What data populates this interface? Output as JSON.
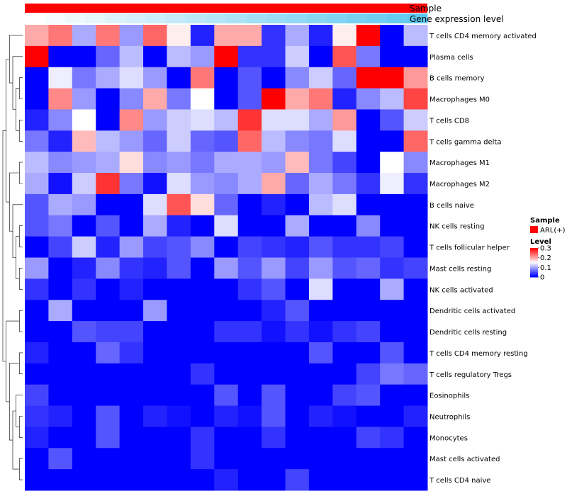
{
  "chart_data": {
    "type": "heatmap",
    "title": "",
    "annotations": [
      {
        "name": "Sample",
        "kind": "categorical",
        "color": "#ff0000"
      },
      {
        "name": "Gene expression level",
        "kind": "continuous",
        "values": [
          0,
          0.05,
          0.1,
          0.15,
          0.2,
          0.25,
          0.3,
          0.35,
          0.4,
          0.45,
          0.5,
          0.55,
          0.6,
          0.65,
          0.7,
          0.75,
          0.8,
          0.85,
          0.9,
          0.95
        ]
      }
    ],
    "rows": [
      "T cells CD4 memory activated",
      "Plasma cells",
      "B cells memory",
      "Macrophages M0",
      "T cells CD8",
      "T cells gamma delta",
      "Macrophages M1",
      "Macrophages M2",
      "B cells naive",
      "NK cells resting",
      "T cells follicular helper",
      "Mast cells resting",
      "NK cells activated",
      "Dendritic cells activated",
      "Dendritic cells resting",
      "T cells CD4 memory resting",
      "T cells regulatory  Tregs",
      "Eosinophils",
      "Neutrophils",
      "Monocytes",
      "Mast cells activated",
      "T cells CD4 naive"
    ],
    "matrix": [
      [
        0.2,
        0.23,
        0.1,
        0.23,
        0.09,
        0.24,
        0.16,
        0.02,
        0.2,
        0.2,
        0.03,
        0.1,
        0.02,
        0.16,
        0.3,
        0.0,
        0.11
      ],
      [
        0.3,
        0.0,
        0.0,
        0.06,
        0.11,
        0.0,
        0.11,
        0.09,
        0.3,
        0.03,
        0.03,
        0.12,
        0.0,
        0.25,
        0.07,
        0.0,
        0.0
      ],
      [
        0.0,
        0.14,
        0.07,
        0.1,
        0.13,
        0.09,
        0.0,
        0.23,
        0.0,
        0.05,
        0.0,
        0.08,
        0.12,
        0.06,
        0.3,
        0.3,
        0.21
      ],
      [
        0.0,
        0.22,
        0.09,
        0.0,
        0.08,
        0.2,
        0.07,
        0.15,
        0.0,
        0.05,
        0.3,
        0.2,
        0.23,
        0.02,
        0.08,
        0.11,
        0.26
      ],
      [
        0.02,
        0.08,
        0.15,
        0.0,
        0.22,
        0.09,
        0.12,
        0.13,
        0.11,
        0.27,
        0.13,
        0.13,
        0.1,
        0.21,
        0.0,
        0.05,
        0.12
      ],
      [
        0.07,
        0.02,
        0.19,
        0.11,
        0.09,
        0.06,
        0.12,
        0.06,
        0.05,
        0.24,
        0.11,
        0.08,
        0.07,
        0.13,
        0.0,
        0.0,
        0.24
      ],
      [
        0.11,
        0.08,
        0.09,
        0.1,
        0.17,
        0.08,
        0.09,
        0.07,
        0.1,
        0.1,
        0.09,
        0.19,
        0.07,
        0.04,
        0.0,
        0.15,
        0.08
      ],
      [
        0.1,
        0.01,
        0.12,
        0.27,
        0.07,
        0.01,
        0.13,
        0.09,
        0.08,
        0.1,
        0.2,
        0.06,
        0.1,
        0.07,
        0.03,
        0.14,
        0.03
      ],
      [
        0.05,
        0.1,
        0.09,
        0.0,
        0.0,
        0.13,
        0.25,
        0.17,
        0.06,
        0.0,
        0.02,
        0.0,
        0.11,
        0.13,
        0.0,
        0.0,
        0.0
      ],
      [
        0.05,
        0.07,
        0.0,
        0.05,
        0.0,
        0.1,
        0.02,
        0.0,
        0.13,
        0.0,
        0.0,
        0.1,
        0.0,
        0.0,
        0.08,
        0.0,
        0.0
      ],
      [
        0.0,
        0.04,
        0.12,
        0.02,
        0.09,
        0.04,
        0.05,
        0.08,
        0.0,
        0.04,
        0.03,
        0.02,
        0.05,
        0.03,
        0.03,
        0.04,
        0.0
      ],
      [
        0.09,
        0.0,
        0.02,
        0.08,
        0.03,
        0.02,
        0.05,
        0.0,
        0.09,
        0.05,
        0.09,
        0.04,
        0.09,
        0.05,
        0.06,
        0.03,
        0.04
      ],
      [
        0.03,
        0.0,
        0.03,
        0.0,
        0.02,
        0.0,
        0.0,
        0.0,
        0.0,
        0.03,
        0.05,
        0.0,
        0.13,
        0.0,
        0.0,
        0.1,
        0.0
      ],
      [
        0.0,
        0.1,
        0.0,
        0.0,
        0.0,
        0.09,
        0.0,
        0.0,
        0.0,
        0.0,
        0.02,
        0.05,
        0.0,
        0.0,
        0.0,
        0.0,
        0.0
      ],
      [
        0.0,
        0.0,
        0.05,
        0.04,
        0.04,
        0.0,
        0.0,
        0.0,
        0.03,
        0.03,
        0.01,
        0.03,
        0.01,
        0.03,
        0.04,
        0.0,
        0.0
      ],
      [
        0.02,
        0.0,
        0.0,
        0.06,
        0.03,
        0.0,
        0.0,
        0.0,
        0.0,
        0.0,
        0.0,
        0.0,
        0.05,
        0.0,
        0.0,
        0.05,
        0.0
      ],
      [
        0.0,
        0.0,
        0.0,
        0.0,
        0.0,
        0.0,
        0.0,
        0.03,
        0.0,
        0.0,
        0.0,
        0.0,
        0.0,
        0.0,
        0.04,
        0.07,
        0.06
      ],
      [
        0.04,
        0.0,
        0.0,
        0.0,
        0.0,
        0.0,
        0.0,
        0.0,
        0.05,
        0.0,
        0.05,
        0.0,
        0.0,
        0.04,
        0.05,
        0.0,
        0.0
      ],
      [
        0.03,
        0.02,
        0.0,
        0.05,
        0.0,
        0.02,
        0.01,
        0.0,
        0.02,
        0.01,
        0.05,
        0.0,
        0.02,
        0.01,
        0.0,
        0.0,
        0.02
      ],
      [
        0.02,
        0.0,
        0.0,
        0.05,
        0.0,
        0.0,
        0.0,
        0.03,
        0.0,
        0.0,
        0.03,
        0.0,
        0.0,
        0.0,
        0.04,
        0.03,
        0.0
      ],
      [
        0.0,
        0.05,
        0.0,
        0.0,
        0.0,
        0.0,
        0.0,
        0.03,
        0.0,
        0.0,
        0.0,
        0.0,
        0.0,
        0.0,
        0.0,
        0.0,
        0.0
      ],
      [
        0.0,
        0.0,
        0.0,
        0.0,
        0.0,
        0.0,
        0.0,
        0.0,
        0.02,
        0.0,
        0.0,
        0.04,
        0.0,
        0.0,
        0.0,
        0.0,
        0.0
      ]
    ],
    "color_scale": {
      "min": 0,
      "max": 0.3,
      "colors": [
        "#0000ff",
        "#ffffff",
        "#ff0000"
      ]
    },
    "legend": {
      "sample_title": "Sample",
      "sample_entry": "ARL(+)",
      "level_title": "Level",
      "level_ticks": [
        "0.3",
        "0.2",
        "0.1",
        "0"
      ],
      "level_tick_values": [
        0.3,
        0.2,
        0.1,
        0
      ]
    },
    "row_dendrogram": true
  }
}
